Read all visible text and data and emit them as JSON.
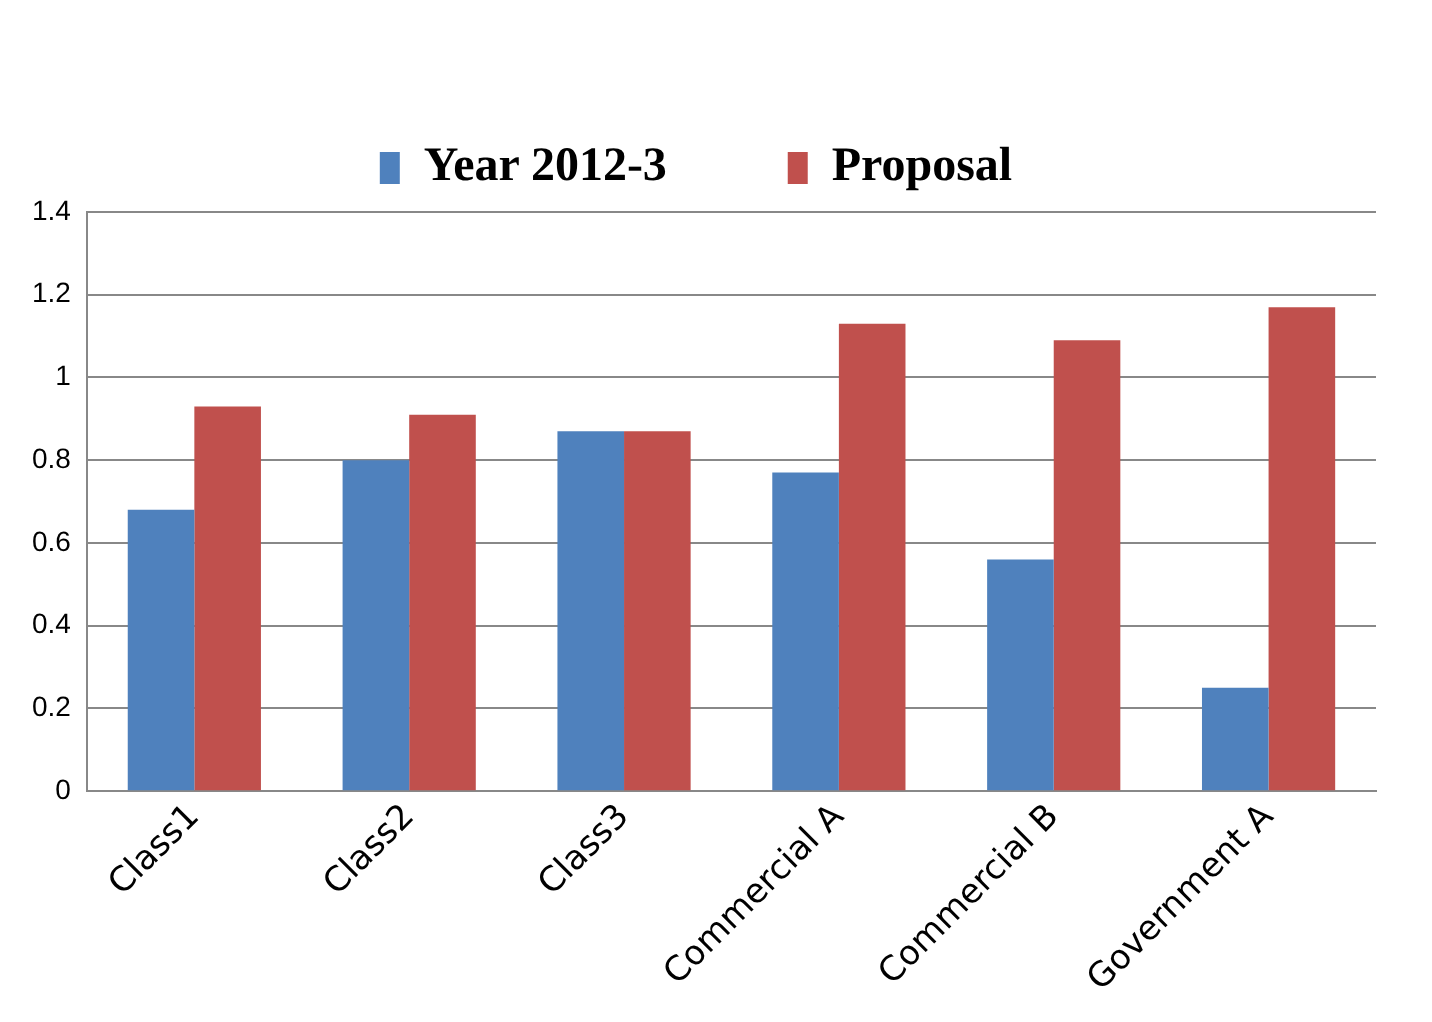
{
  "chart_data": {
    "type": "bar",
    "categories": [
      "Class1",
      "Class2",
      "Class3",
      "Commercial A",
      "Commercial B",
      "Government A"
    ],
    "series": [
      {
        "name": "Year 2012-3",
        "color": "#4f81bd",
        "values": [
          0.68,
          0.8,
          0.87,
          0.77,
          0.56,
          0.25
        ]
      },
      {
        "name": "Proposal",
        "color": "#c0504d",
        "values": [
          0.93,
          0.91,
          0.87,
          1.13,
          1.09,
          1.17
        ]
      }
    ],
    "ylim": [
      0,
      1.4
    ],
    "yticks": [
      0,
      0.2,
      0.4,
      0.6,
      0.8,
      1,
      1.2,
      1.4
    ],
    "grid": "y",
    "legend": "top"
  }
}
